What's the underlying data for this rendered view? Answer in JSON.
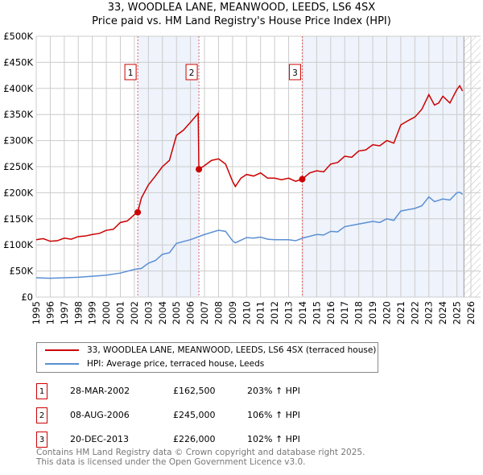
{
  "title": "33, WOODLEA LANE, MEANWOOD, LEEDS, LS6 4SX",
  "subtitle": "Price paid vs. HM Land Registry's House Price Index (HPI)",
  "chart_data": {
    "type": "line",
    "title": "33, WOODLEA LANE, MEANWOOD, LEEDS, LS6 4SX",
    "subtitle": "Price paid vs. HM Land Registry's House Price Index (HPI)",
    "xlim": [
      1995,
      2026
    ],
    "ylim": [
      0,
      500000
    ],
    "x_ticks": [
      "1995",
      "1996",
      "1997",
      "1998",
      "1999",
      "2000",
      "2001",
      "2002",
      "2003",
      "2004",
      "2005",
      "2006",
      "2007",
      "2008",
      "2009",
      "2010",
      "2011",
      "2012",
      "2013",
      "2014",
      "2015",
      "2016",
      "2017",
      "2018",
      "2019",
      "2020",
      "2021",
      "2022",
      "2023",
      "2024",
      "2025",
      "2026"
    ],
    "y_ticks": [
      {
        "v": 0,
        "label": "£0"
      },
      {
        "v": 50000,
        "label": "£50K"
      },
      {
        "v": 100000,
        "label": "£100K"
      },
      {
        "v": 150000,
        "label": "£150K"
      },
      {
        "v": 200000,
        "label": "£200K"
      },
      {
        "v": 250000,
        "label": "£250K"
      },
      {
        "v": 300000,
        "label": "£300K"
      },
      {
        "v": 350000,
        "label": "£350K"
      },
      {
        "v": 400000,
        "label": "£400K"
      },
      {
        "v": 450000,
        "label": "£450K"
      },
      {
        "v": 500000,
        "label": "£500K"
      }
    ],
    "grid": true,
    "series": [
      {
        "name": "33, WOODLEA LANE, MEANWOOD, LEEDS, LS6 4SX (terraced house)",
        "color": "#cc0000",
        "x": [
          1995,
          1995.5,
          1996,
          1996.5,
          1997,
          1997.5,
          1998,
          1998.5,
          1999,
          1999.5,
          2000,
          2000.5,
          2001,
          2001.5,
          2002,
          2002.24,
          2002.5,
          2003,
          2003.5,
          2004,
          2004.5,
          2005,
          2005.5,
          2006,
          2006.55,
          2006.6,
          2007,
          2007.5,
          2008,
          2008.5,
          2009,
          2009.2,
          2009.6,
          2010,
          2010.5,
          2011,
          2011.5,
          2012,
          2012.5,
          2013,
          2013.5,
          2013.97,
          2014.5,
          2015,
          2015.5,
          2016,
          2016.5,
          2017,
          2017.5,
          2018,
          2018.5,
          2019,
          2019.5,
          2020,
          2020.5,
          2021,
          2021.5,
          2022,
          2022.5,
          2023,
          2023.4,
          2023.7,
          2024,
          2024.5,
          2025,
          2025.2,
          2025.4
        ],
        "y": [
          110000,
          112000,
          107000,
          108000,
          113000,
          111000,
          116000,
          117000,
          120000,
          122000,
          128000,
          130000,
          143000,
          146000,
          158000,
          162500,
          190000,
          215000,
          232000,
          250000,
          262000,
          310000,
          320000,
          335000,
          352000,
          245000,
          252000,
          262000,
          265000,
          255000,
          222000,
          212000,
          228000,
          235000,
          232000,
          238000,
          228000,
          228000,
          225000,
          228000,
          222000,
          226000,
          238000,
          242000,
          240000,
          255000,
          258000,
          270000,
          268000,
          280000,
          282000,
          292000,
          290000,
          300000,
          295000,
          330000,
          338000,
          345000,
          360000,
          388000,
          368000,
          372000,
          385000,
          372000,
          398000,
          405000,
          395000
        ]
      },
      {
        "name": "HPI: Average price, terraced house, Leeds",
        "color": "#5b8fd4",
        "x": [
          1995,
          1996,
          1997,
          1998,
          1999,
          2000,
          2001,
          2002,
          2002.5,
          2003,
          2003.5,
          2004,
          2004.5,
          2005,
          2006,
          2007,
          2008,
          2008.5,
          2009,
          2009.2,
          2010,
          2010.5,
          2011,
          2011.5,
          2012,
          2013,
          2013.5,
          2014,
          2015,
          2015.5,
          2016,
          2016.5,
          2017,
          2018,
          2019,
          2019.5,
          2020,
          2020.5,
          2021,
          2022,
          2022.5,
          2023,
          2023.4,
          2024,
          2024.5,
          2025,
          2025.2,
          2025.4
        ],
        "y": [
          37000,
          36000,
          37000,
          38000,
          40000,
          42000,
          46000,
          53000,
          55000,
          65000,
          70000,
          82000,
          85000,
          103000,
          110000,
          120000,
          128000,
          126000,
          108000,
          104000,
          114000,
          113000,
          115000,
          111000,
          110000,
          110000,
          108000,
          113000,
          120000,
          119000,
          126000,
          125000,
          135000,
          140000,
          145000,
          143000,
          150000,
          147000,
          165000,
          170000,
          175000,
          192000,
          183000,
          188000,
          186000,
          200000,
          201000,
          197000
        ]
      }
    ],
    "sales": [
      {
        "n": "1",
        "x": 2002.24,
        "y": 162500,
        "date": "28-MAR-2002",
        "price": "£162,500",
        "hpi": "203% ↑ HPI"
      },
      {
        "n": "2",
        "x": 2006.6,
        "y": 245000,
        "date": "08-AUG-2006",
        "price": "£245,000",
        "hpi": "106% ↑ HPI"
      },
      {
        "n": "3",
        "x": 2013.97,
        "y": 226000,
        "date": "20-DEC-2013",
        "price": "£226,000",
        "hpi": "102% ↑ HPI"
      }
    ],
    "shaded": [
      [
        2002.24,
        2006.6
      ],
      [
        2013.97,
        2025.5
      ]
    ],
    "hatched_from": 2025.5
  },
  "legend": {
    "property": "33, WOODLEA LANE, MEANWOOD, LEEDS, LS6 4SX (terraced house)",
    "hpi": "HPI: Average price, terraced house, Leeds"
  },
  "footer": {
    "line1": "Contains HM Land Registry data © Crown copyright and database right 2025.",
    "line2": "This data is licensed under the Open Government Licence v3.0."
  }
}
